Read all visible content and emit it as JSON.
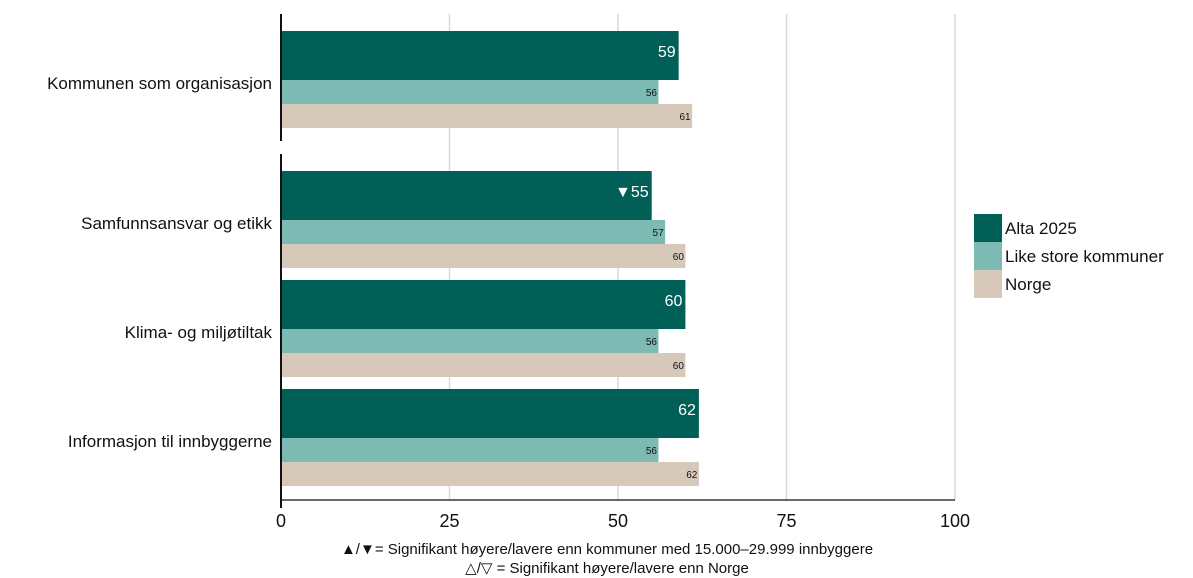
{
  "chart_data": {
    "type": "bar",
    "orientation": "horizontal",
    "categories": [
      "Kommunen som organisasjon",
      "Samfunnsansvar og etikk",
      "Klima- og miljøtiltak",
      "Informasjon til innbyggerne"
    ],
    "series": [
      {
        "name": "Alta 2025",
        "color": "#005f56",
        "values": [
          59,
          55,
          60,
          62
        ],
        "markers": [
          "",
          "▼",
          "",
          ""
        ]
      },
      {
        "name": "Like store kommuner",
        "color": "#7dbab3",
        "values": [
          56,
          57,
          56,
          56
        ]
      },
      {
        "name": "Norge",
        "color": "#d6c9b9",
        "values": [
          61,
          60,
          60,
          62
        ]
      }
    ],
    "xlim": [
      0,
      100
    ],
    "xticks": [
      0,
      25,
      50,
      75,
      100
    ],
    "grid": true,
    "legend_position": "right",
    "title": "",
    "xlabel": "",
    "ylabel": ""
  },
  "footnotes": {
    "line1": "▲/▼= Signifikant høyere/lavere enn kommuner med 15.000–29.999 innbyggere",
    "line2": "△/▽ = Signifikant høyere/lavere enn Norge"
  }
}
